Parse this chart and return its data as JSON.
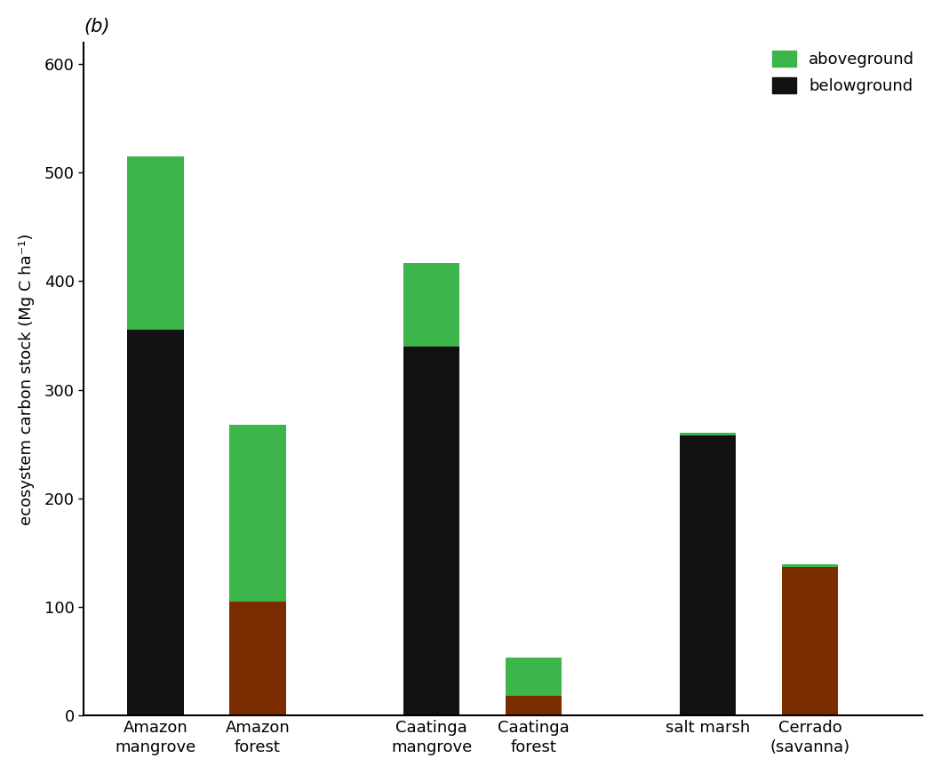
{
  "categories": [
    "Amazon\nmangrove",
    "Amazon\nforest",
    "Caatinga\nmangrove",
    "Caatinga\nforest",
    "salt marsh",
    "Cerrado\n(savanna)"
  ],
  "belowground": [
    355,
    105,
    340,
    18,
    258,
    137
  ],
  "aboveground": [
    160,
    163,
    77,
    35,
    2,
    2
  ],
  "belowground_colors": [
    "#111111",
    "#7a2e00",
    "#111111",
    "#7a2e00",
    "#111111",
    "#7a2e00"
  ],
  "aboveground_colors": [
    "#3cb54a",
    "#3cb54a",
    "#3cb54a",
    "#3cb54a",
    "#3cb54a",
    "#3cb54a"
  ],
  "ylabel": "ecosystem carbon stock (Mg C ha⁻¹)",
  "ylim": [
    0,
    620
  ],
  "yticks": [
    0,
    100,
    200,
    300,
    400,
    500,
    600
  ],
  "panel_label": "(b)",
  "legend_aboveground": "aboveground",
  "legend_belowground": "belowground",
  "bar_width": 0.55,
  "group_positions": [
    1,
    2,
    3.7,
    4.7,
    6.4,
    7.4
  ],
  "xlim": [
    0.3,
    8.5
  ],
  "background_color": "#ffffff",
  "font_size_ticks": 13,
  "font_size_ylabel": 13,
  "font_size_legend": 13,
  "font_size_panel": 15
}
